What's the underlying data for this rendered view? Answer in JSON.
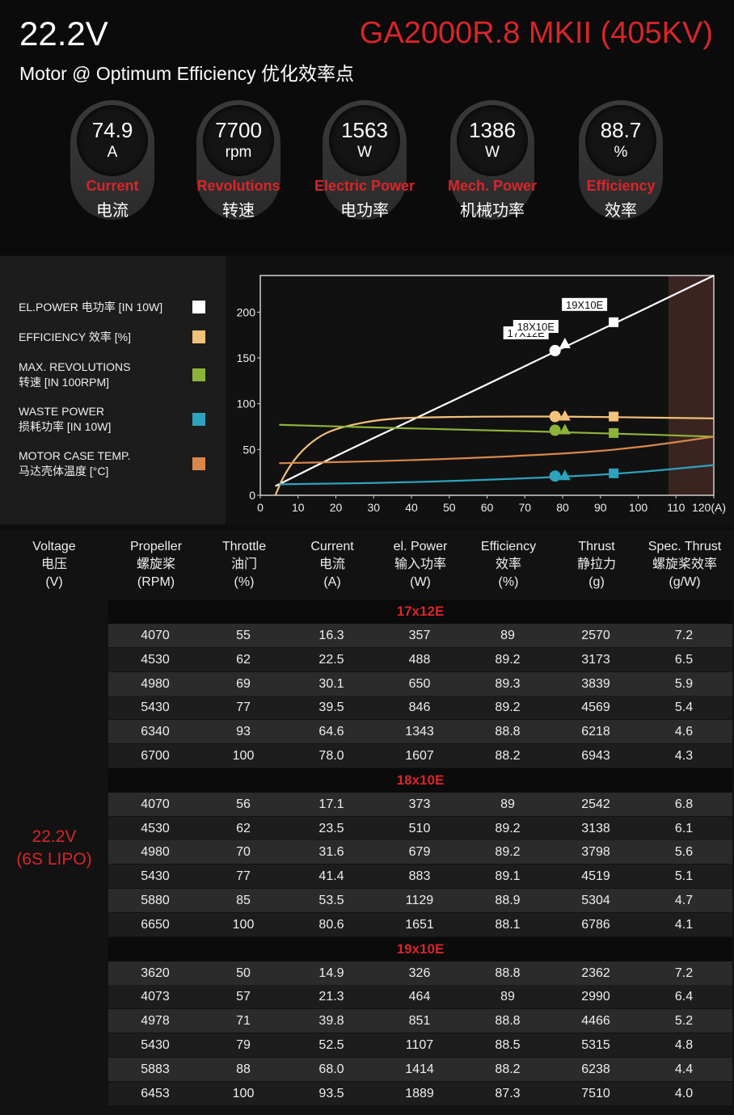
{
  "header": {
    "voltage": "22.2V",
    "model": "GA2000R.8 MKII (405KV)",
    "subtitle": "Motor @ Optimum Efficiency  优化效率点",
    "accent_color": "#d9252a"
  },
  "gauges": [
    {
      "value": "74.9",
      "unit": "A",
      "label_en": "Current",
      "label_cn": "电流"
    },
    {
      "value": "7700",
      "unit": "rpm",
      "label_en": "Revolutions",
      "label_cn": "转速"
    },
    {
      "value": "1563",
      "unit": "W",
      "label_en": "Electric Power",
      "label_cn": "电功率"
    },
    {
      "value": "1386",
      "unit": "W",
      "label_en": "Mech. Power",
      "label_cn": "机械功率"
    },
    {
      "value": "88.7",
      "unit": "%",
      "label_en": "Efficiency",
      "label_cn": "效率"
    }
  ],
  "legend": [
    {
      "line1": "EL.POWER 电功率 [IN 10W]",
      "line2": "",
      "color": "#ffffff"
    },
    {
      "line1": "EFFICIENCY 效率 [%]",
      "line2": "",
      "color": "#f2c27a"
    },
    {
      "line1": "MAX. REVOLUTIONS",
      "line2": "转速 [IN 100RPM]",
      "color": "#8db33a"
    },
    {
      "line1": "WASTE POWER",
      "line2": "损耗功率 [IN 10W]",
      "color": "#2ea3bd"
    },
    {
      "line1": "MOTOR CASE TEMP.",
      "line2": "马达壳体温度 [°C]",
      "color": "#d9884a"
    }
  ],
  "chart_data": {
    "type": "line",
    "xlim": [
      0,
      120
    ],
    "ylim": [
      0,
      240
    ],
    "x_ticks": [
      "0",
      "10",
      "20",
      "30",
      "40",
      "50",
      "60",
      "70",
      "80",
      "90",
      "100",
      "110",
      "120(A)"
    ],
    "y_ticks": [
      "0",
      "50",
      "100",
      "150",
      "200"
    ],
    "shaded_region_x": [
      108,
      120
    ],
    "series": [
      {
        "color": "#ffffff",
        "points": [
          [
            4,
            10
          ],
          [
            20,
            43
          ],
          [
            40,
            82
          ],
          [
            60,
            121
          ],
          [
            80,
            161
          ],
          [
            100,
            200
          ],
          [
            120,
            240
          ]
        ]
      },
      {
        "color": "#f2c27a",
        "points": [
          [
            4,
            0
          ],
          [
            6,
            20
          ],
          [
            10,
            45
          ],
          [
            15,
            63
          ],
          [
            20,
            73
          ],
          [
            30,
            82
          ],
          [
            40,
            85
          ],
          [
            60,
            86
          ],
          [
            80,
            86
          ],
          [
            100,
            85
          ],
          [
            120,
            84
          ]
        ]
      },
      {
        "color": "#8db33a",
        "points": [
          [
            5,
            77
          ],
          [
            30,
            74
          ],
          [
            60,
            71
          ],
          [
            90,
            68
          ],
          [
            120,
            64
          ]
        ]
      },
      {
        "color": "#2ea3bd",
        "points": [
          [
            5,
            12
          ],
          [
            40,
            14
          ],
          [
            80,
            20
          ],
          [
            100,
            25
          ],
          [
            120,
            33
          ]
        ]
      },
      {
        "color": "#d9884a",
        "points": [
          [
            5,
            35
          ],
          [
            40,
            38
          ],
          [
            80,
            45
          ],
          [
            100,
            52
          ],
          [
            120,
            64
          ]
        ]
      }
    ],
    "markers": [
      {
        "label": "17X12E",
        "shape": "circle",
        "x": 78,
        "values": [
          158,
          86,
          71,
          21
        ]
      },
      {
        "label": "18X10E",
        "shape": "triangle",
        "x": 80.6,
        "values": [
          165,
          86,
          71,
          21
        ]
      },
      {
        "label": "19X10E",
        "shape": "square",
        "x": 93.5,
        "values": [
          189,
          86,
          68,
          24
        ]
      }
    ]
  },
  "table": {
    "headers": [
      [
        "Voltage",
        "电压",
        "(V)"
      ],
      [
        "Propeller",
        "螺旋桨",
        "(RPM)"
      ],
      [
        "Throttle",
        "油门",
        "(%)"
      ],
      [
        "Current",
        "电流",
        "(A)"
      ],
      [
        "el. Power",
        "输入功率",
        "(W)"
      ],
      [
        "Efficiency",
        "效率",
        "(%)"
      ],
      [
        "Thrust",
        "静拉力",
        "(g)"
      ],
      [
        "Spec. Thrust",
        "螺旋桨效率",
        "(g/W)"
      ]
    ],
    "voltage_line1": "22.2V",
    "voltage_line2": "(6S LIPO)",
    "groups": [
      {
        "title": "17x12E",
        "rows": [
          [
            "4070",
            "55",
            "16.3",
            "357",
            "89",
            "2570",
            "7.2"
          ],
          [
            "4530",
            "62",
            "22.5",
            "488",
            "89.2",
            "3173",
            "6.5"
          ],
          [
            "4980",
            "69",
            "30.1",
            "650",
            "89.3",
            "3839",
            "5.9"
          ],
          [
            "5430",
            "77",
            "39.5",
            "846",
            "89.2",
            "4569",
            "5.4"
          ],
          [
            "6340",
            "93",
            "64.6",
            "1343",
            "88.8",
            "6218",
            "4.6"
          ],
          [
            "6700",
            "100",
            "78.0",
            "1607",
            "88.2",
            "6943",
            "4.3"
          ]
        ]
      },
      {
        "title": "18x10E",
        "rows": [
          [
            "4070",
            "56",
            "17.1",
            "373",
            "89",
            "2542",
            "6.8"
          ],
          [
            "4530",
            "62",
            "23.5",
            "510",
            "89.2",
            "3138",
            "6.1"
          ],
          [
            "4980",
            "70",
            "31.6",
            "679",
            "89.2",
            "3798",
            "5.6"
          ],
          [
            "5430",
            "77",
            "41.4",
            "883",
            "89.1",
            "4519",
            "5.1"
          ],
          [
            "5880",
            "85",
            "53.5",
            "1129",
            "88.9",
            "5304",
            "4.7"
          ],
          [
            "6650",
            "100",
            "80.6",
            "1651",
            "88.1",
            "6786",
            "4.1"
          ]
        ]
      },
      {
        "title": "19x10E",
        "rows": [
          [
            "3620",
            "50",
            "14.9",
            "326",
            "88.8",
            "2362",
            "7.2"
          ],
          [
            "4073",
            "57",
            "21.3",
            "464",
            "89",
            "2990",
            "6.4"
          ],
          [
            "4978",
            "71",
            "39.8",
            "851",
            "88.8",
            "4466",
            "5.2"
          ],
          [
            "5430",
            "79",
            "52.5",
            "1107",
            "88.5",
            "5315",
            "4.8"
          ],
          [
            "5883",
            "88",
            "68.0",
            "1414",
            "88.2",
            "6238",
            "4.4"
          ],
          [
            "6453",
            "100",
            "93.5",
            "1889",
            "87.3",
            "7510",
            "4.0"
          ]
        ]
      }
    ]
  }
}
